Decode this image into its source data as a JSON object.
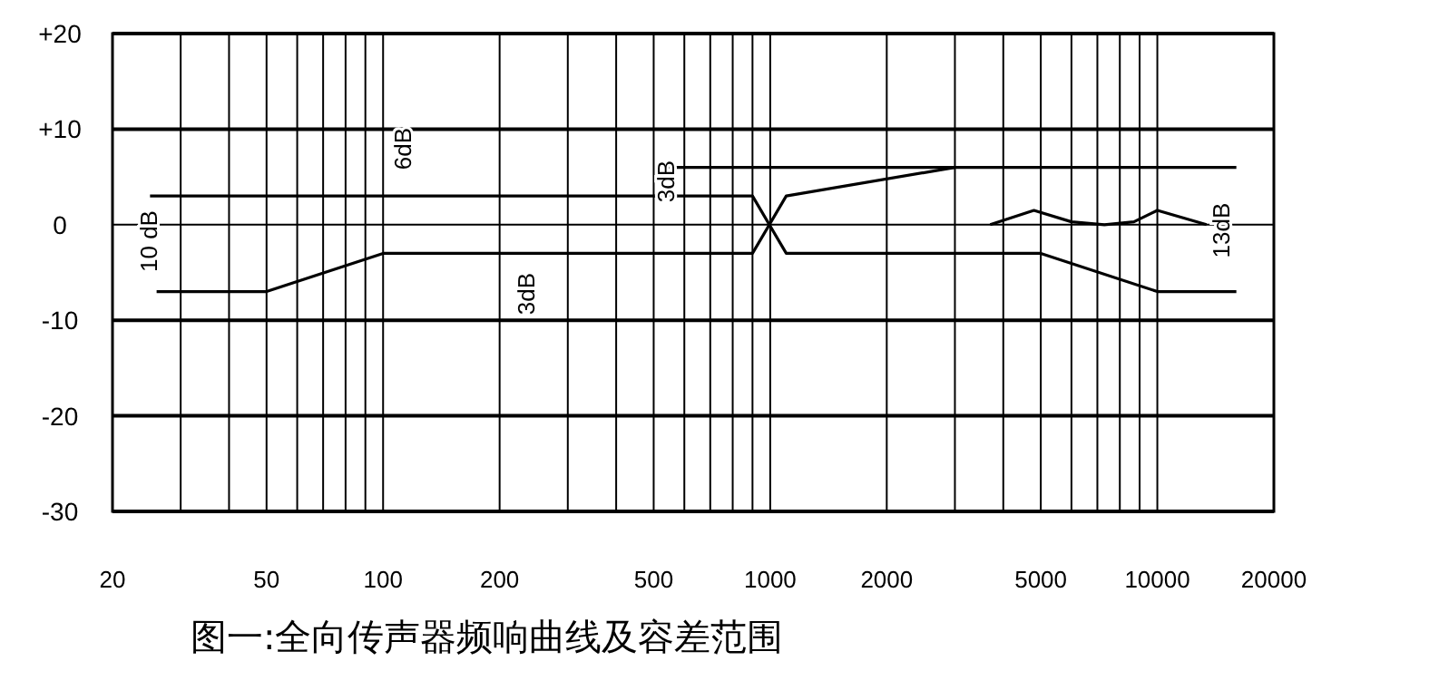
{
  "chart_data": {
    "type": "line",
    "title": "图一:全向传声器频响曲线及容差范围",
    "log": "x",
    "xlim": [
      20,
      20000
    ],
    "ylim": [
      -30,
      20
    ],
    "xticks": [
      20,
      {
        "value": 30,
        "label": null
      },
      {
        "value": 40,
        "label": null
      },
      50,
      {
        "value": 60,
        "label": null
      },
      {
        "value": 70,
        "label": null
      },
      {
        "value": 80,
        "label": null
      },
      {
        "value": 90,
        "label": null
      },
      100,
      200,
      {
        "value": 300,
        "label": null
      },
      {
        "value": 400,
        "label": null
      },
      500,
      {
        "value": 600,
        "label": null
      },
      {
        "value": 700,
        "label": null
      },
      {
        "value": 800,
        "label": null
      },
      {
        "value": 900,
        "label": null
      },
      1000,
      2000,
      {
        "value": 3000,
        "label": null
      },
      {
        "value": 4000,
        "label": null
      },
      5000,
      {
        "value": 6000,
        "label": null
      },
      {
        "value": 7000,
        "label": null
      },
      {
        "value": 8000,
        "label": null
      },
      {
        "value": 9000,
        "label": null
      },
      10000,
      20000
    ],
    "yticks": [
      {
        "value": 20,
        "label": "+20"
      },
      {
        "value": 10,
        "label": "+10"
      },
      0,
      -10,
      -20,
      -30
    ],
    "grid": true,
    "marker": "none",
    "line_style": "solid",
    "series": [
      {
        "color": "#000000",
        "x": [
          26,
          50,
          100,
          900,
          1100,
          3000,
          16000
        ],
        "values": [
          -7,
          -7,
          -3,
          -3,
          3,
          6,
          6
        ]
      },
      {
        "color": "#000000",
        "x": [
          25,
          900,
          1100,
          5000,
          10000,
          16000
        ],
        "values": [
          3,
          3,
          -3,
          -3,
          -7,
          -7
        ]
      },
      {
        "color": "#000000",
        "x": [
          540,
          3000
        ],
        "values": [
          6,
          6
        ]
      },
      {
        "color": "#000000",
        "x": [
          3700,
          4800,
          6000,
          7300,
          8700,
          10000,
          13400
        ],
        "values": [
          0,
          1.5,
          0.3,
          0,
          0.3,
          1.5,
          0
        ]
      }
    ],
    "annotations": [
      "10 dB",
      "6dB",
      "3dB",
      "3dB",
      "13dB"
    ]
  }
}
